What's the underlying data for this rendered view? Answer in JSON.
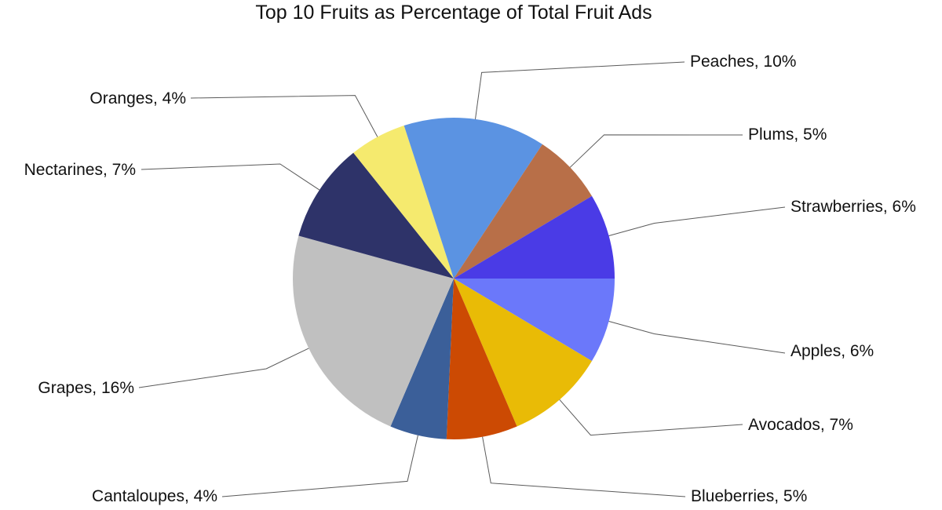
{
  "chart_data": {
    "type": "pie",
    "title": "Top 10 Fruits as Percentage of Total Fruit Ads",
    "start": "3 o'clock",
    "direction": "clockwise",
    "slices": [
      {
        "label": "Apples, 6%",
        "name": "Apples",
        "value": 6,
        "color": "#6b78fa"
      },
      {
        "label": "Avocados, 7%",
        "name": "Avocados",
        "value": 7,
        "color": "#e9bb06"
      },
      {
        "label": "Blueberries, 5%",
        "name": "Blueberries",
        "value": 5,
        "color": "#cc4a03"
      },
      {
        "label": "Cantaloupes, 4%",
        "name": "Cantaloupes",
        "value": 4,
        "color": "#3b5f99"
      },
      {
        "label": "Grapes, 16%",
        "name": "Grapes",
        "value": 16,
        "color": "#c0c0c0"
      },
      {
        "label": "Nectarines, 7%",
        "name": "Nectarines",
        "value": 7,
        "color": "#2e3369"
      },
      {
        "label": "Oranges, 4%",
        "name": "Oranges",
        "value": 4,
        "color": "#f5ea6e"
      },
      {
        "label": "Peaches, 10%",
        "name": "Peaches",
        "value": 10,
        "color": "#5b93e2"
      },
      {
        "label": "Plums, 5%",
        "name": "Plums",
        "value": 5,
        "color": "#b86f48"
      },
      {
        "label": "Strawberries, 6%",
        "name": "Strawberries",
        "value": 6,
        "color": "#4a3be6"
      }
    ]
  }
}
